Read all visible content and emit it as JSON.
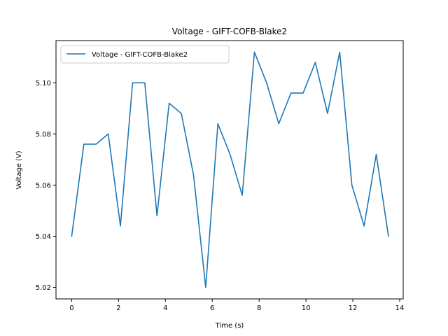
{
  "chart_data": {
    "type": "line",
    "title": "Voltage - GIFT-COFB-Blake2",
    "xlabel": "Time (s)",
    "ylabel": "Voltage (V)",
    "xlim": [
      -0.67,
      14.15
    ],
    "ylim": [
      5.0155,
      5.1165
    ],
    "xticks": [
      0,
      2,
      4,
      6,
      8,
      10,
      12,
      14
    ],
    "yticks": [
      5.02,
      5.04,
      5.06,
      5.08,
      5.1
    ],
    "xtick_labels": [
      "0",
      "2",
      "4",
      "6",
      "8",
      "10",
      "12",
      "14"
    ],
    "ytick_labels": [
      "5.02",
      "5.04",
      "5.06",
      "5.08",
      "5.10"
    ],
    "grid": false,
    "legend": "upper-left",
    "series": [
      {
        "name": "Voltage - GIFT-COFB-Blake2",
        "color": "#1f77b4",
        "x": [
          0.0,
          0.52,
          1.04,
          1.56,
          2.08,
          2.6,
          3.12,
          3.64,
          4.16,
          4.68,
          5.2,
          5.72,
          6.24,
          6.76,
          7.28,
          7.8,
          8.32,
          8.84,
          9.36,
          9.88,
          10.4,
          10.92,
          11.44,
          11.96,
          12.48,
          13.0,
          13.52
        ],
        "y": [
          5.04,
          5.076,
          5.076,
          5.08,
          5.044,
          5.1,
          5.1,
          5.048,
          5.092,
          5.088,
          5.064,
          5.02,
          5.084,
          5.072,
          5.056,
          5.112,
          5.1,
          5.084,
          5.096,
          5.096,
          5.108,
          5.088,
          5.112,
          5.06,
          5.044,
          5.072,
          5.04
        ]
      }
    ]
  }
}
